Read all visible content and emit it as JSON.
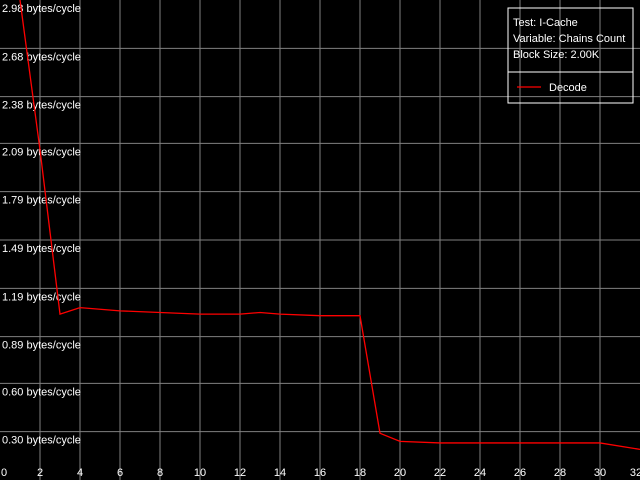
{
  "chart_data": {
    "type": "line",
    "title": "",
    "xlabel": "",
    "ylabel": "",
    "xlim": [
      0,
      32
    ],
    "ylim": [
      0,
      2.98
    ],
    "grid": true,
    "legend_placement": "top-right",
    "x_ticks": [
      "0",
      "2",
      "4",
      "6",
      "8",
      "10",
      "12",
      "14",
      "16",
      "18",
      "20",
      "22",
      "24",
      "26",
      "28",
      "30",
      "32"
    ],
    "y_ticks": [
      {
        "value": 2.98,
        "label": "2.98 bytes/cycle"
      },
      {
        "value": 2.68,
        "label": "2.68 bytes/cycle"
      },
      {
        "value": 2.38,
        "label": "2.38 bytes/cycle"
      },
      {
        "value": 2.09,
        "label": "2.09 bytes/cycle"
      },
      {
        "value": 1.79,
        "label": "1.79 bytes/cycle"
      },
      {
        "value": 1.49,
        "label": "1.49 bytes/cycle"
      },
      {
        "value": 1.19,
        "label": "1.19 bytes/cycle"
      },
      {
        "value": 0.89,
        "label": "0.89 bytes/cycle"
      },
      {
        "value": 0.6,
        "label": "0.60 bytes/cycle"
      },
      {
        "value": 0.3,
        "label": "0.30 bytes/cycle"
      }
    ],
    "info": [
      "Test: I-Cache",
      "Variable: Chains Count",
      "Block Size: 2.00K"
    ],
    "series": [
      {
        "name": "Decode",
        "color": "#ff0000",
        "x": [
          1,
          2,
          3,
          4,
          6,
          8,
          10,
          12,
          13,
          14,
          16,
          18,
          19,
          20,
          22,
          24,
          26,
          28,
          30,
          32
        ],
        "y": [
          2.98,
          2.05,
          1.03,
          1.07,
          1.05,
          1.04,
          1.03,
          1.03,
          1.04,
          1.03,
          1.02,
          1.02,
          0.29,
          0.24,
          0.23,
          0.23,
          0.23,
          0.23,
          0.23,
          0.19
        ]
      }
    ],
    "colors": {
      "background": "#000000",
      "grid": "#808080",
      "text": "#ffffff"
    }
  }
}
